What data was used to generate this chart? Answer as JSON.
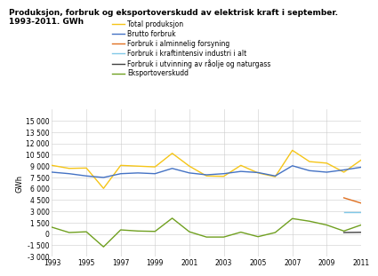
{
  "title": "Produksjon, forbruk og eksportoverskudd av elektrisk kraft i september.\n1993-2011. GWh",
  "ylabel": "GWh",
  "years": [
    1993,
    1994,
    1995,
    1996,
    1997,
    1998,
    1999,
    2000,
    2001,
    2002,
    2003,
    2004,
    2005,
    2006,
    2007,
    2008,
    2009,
    2010,
    2011
  ],
  "total_produksjon": [
    9100,
    8700,
    8750,
    6050,
    9100,
    9000,
    8900,
    10700,
    9000,
    7700,
    7650,
    9100,
    8100,
    7600,
    11100,
    9600,
    9400,
    8200,
    9800
  ],
  "brutto_forbruk": [
    8200,
    8000,
    7700,
    7500,
    8000,
    8100,
    8000,
    8700,
    8100,
    7850,
    8000,
    8300,
    8150,
    7700,
    9050,
    8400,
    8200,
    8500,
    8850
  ],
  "forbruk_alminnelig": [
    null,
    null,
    null,
    null,
    null,
    null,
    null,
    null,
    null,
    null,
    null,
    null,
    null,
    null,
    null,
    null,
    null,
    4800,
    4100
  ],
  "forbruk_kraftintensiv": [
    null,
    null,
    null,
    null,
    null,
    null,
    null,
    null,
    null,
    null,
    null,
    null,
    null,
    null,
    null,
    null,
    null,
    2850,
    2850
  ],
  "forbruk_utvinning": [
    null,
    null,
    null,
    null,
    null,
    null,
    null,
    null,
    null,
    null,
    null,
    null,
    null,
    null,
    null,
    null,
    null,
    200,
    230
  ],
  "eksportoverskudd": [
    900,
    200,
    300,
    -1700,
    550,
    400,
    350,
    2100,
    300,
    -400,
    -400,
    250,
    -350,
    200,
    2050,
    1700,
    1200,
    400,
    1200
  ],
  "colors": {
    "total_produksjon": "#f5c518",
    "brutto_forbruk": "#4472c4",
    "forbruk_alminnelig": "#e07020",
    "forbruk_kraftintensiv": "#80c8e8",
    "forbruk_utvinning": "#404040",
    "eksportoverskudd": "#70a020"
  },
  "ylim": [
    -3000,
    16500
  ],
  "yticks": [
    -3000,
    -1500,
    0,
    1500,
    3000,
    4500,
    6000,
    7500,
    9000,
    10500,
    12000,
    13500,
    15000
  ],
  "ytick_labels": [
    "-3 000",
    "-1 500",
    "0",
    "1 500",
    "3 000",
    "4 500",
    "6 000",
    "7 500",
    "9 000",
    "10 500",
    "12 000",
    "13 500",
    "15 000"
  ],
  "legend_labels": [
    "Total produksjon",
    "Brutto forbruk",
    "Forbruk i alminnelig forsyning",
    "Forbruk i kraftintensiv industri i alt",
    "Forbruk i utvinning av råolje og naturgass",
    "Eksportoverskudd"
  ],
  "xticks": [
    1993,
    1995,
    1997,
    1999,
    2001,
    2003,
    2005,
    2007,
    2009,
    2011
  ],
  "bg_color": "#ffffff",
  "grid_color": "#cccccc"
}
